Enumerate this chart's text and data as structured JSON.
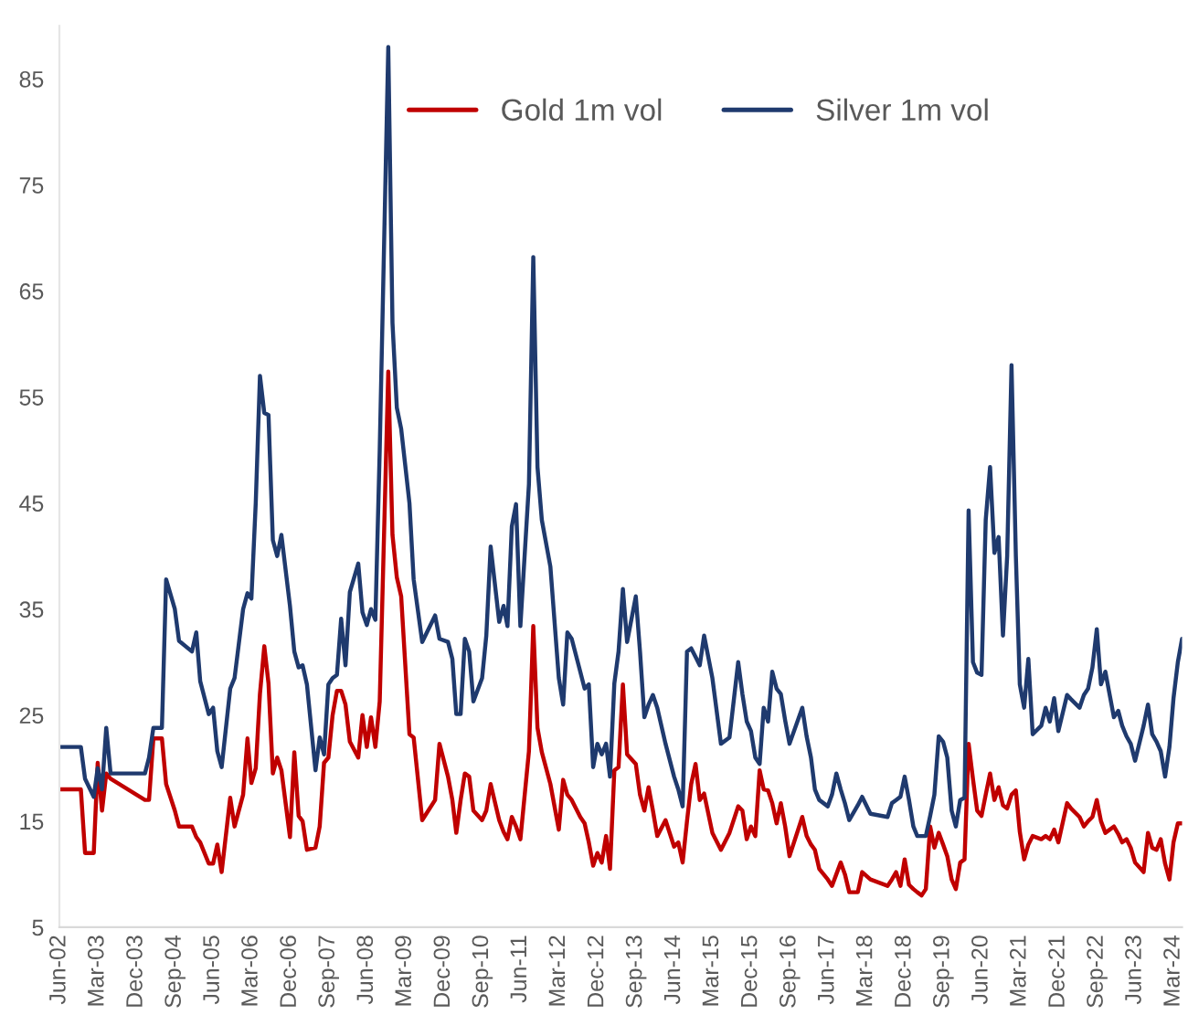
{
  "chart_data": {
    "type": "line",
    "x": [
      "2002-06",
      "2002-11",
      "2002-12",
      "2003-02",
      "2003-03",
      "2003-04",
      "2003-05",
      "2003-06",
      "2004-02",
      "2004-03",
      "2004-04",
      "2004-06",
      "2004-07",
      "2004-09",
      "2004-10",
      "2005-01",
      "2005-02",
      "2005-03",
      "2005-05",
      "2005-06",
      "2005-07",
      "2005-08",
      "2005-10",
      "2005-11",
      "2006-01",
      "2006-02",
      "2006-03",
      "2006-04",
      "2006-05",
      "2006-06",
      "2006-07",
      "2006-08",
      "2006-09",
      "2006-10",
      "2006-12",
      "2007-01",
      "2007-02",
      "2007-03",
      "2007-04",
      "2007-06",
      "2007-07",
      "2007-08",
      "2007-09",
      "2007-10",
      "2007-11",
      "2007-12",
      "2008-01",
      "2008-02",
      "2008-04",
      "2008-05",
      "2008-06",
      "2008-07",
      "2008-08",
      "2008-09",
      "2008-11",
      "2008-12",
      "2009-01",
      "2009-02",
      "2009-04",
      "2009-05",
      "2009-07",
      "2009-10",
      "2009-11",
      "2010-01",
      "2010-02",
      "2010-03",
      "2010-04",
      "2010-05",
      "2010-06",
      "2010-07",
      "2010-09",
      "2010-10",
      "2010-11",
      "2011-01",
      "2011-02",
      "2011-03",
      "2011-04",
      "2011-05",
      "2011-06",
      "2011-08",
      "2011-09",
      "2011-10",
      "2011-11",
      "2012-01",
      "2012-03",
      "2012-04",
      "2012-05",
      "2012-06",
      "2012-08",
      "2012-09",
      "2012-10",
      "2012-11",
      "2012-12",
      "2013-01",
      "2013-02",
      "2013-03",
      "2013-04",
      "2013-05",
      "2013-06",
      "2013-07",
      "2013-09",
      "2013-10",
      "2013-11",
      "2013-12",
      "2014-01",
      "2014-02",
      "2014-04",
      "2014-06",
      "2014-07",
      "2014-08",
      "2014-09",
      "2014-10",
      "2014-11",
      "2014-12",
      "2015-01",
      "2015-03",
      "2015-05",
      "2015-07",
      "2015-09",
      "2015-10",
      "2015-11",
      "2015-12",
      "2016-01",
      "2016-02",
      "2016-03",
      "2016-04",
      "2016-05",
      "2016-06",
      "2016-07",
      "2016-08",
      "2016-09",
      "2016-12",
      "2017-01",
      "2017-02",
      "2017-03",
      "2017-04",
      "2017-06",
      "2017-07",
      "2017-08",
      "2017-09",
      "2017-10",
      "2017-11",
      "2018-01",
      "2018-02",
      "2018-04",
      "2018-08",
      "2018-09",
      "2018-10",
      "2018-11",
      "2018-12",
      "2019-01",
      "2019-02",
      "2019-03",
      "2019-04",
      "2019-05",
      "2019-06",
      "2019-07",
      "2019-08",
      "2019-09",
      "2019-10",
      "2019-11",
      "2019-12",
      "2020-01",
      "2020-02",
      "2020-03",
      "2020-04",
      "2020-05",
      "2020-06",
      "2020-07",
      "2020-08",
      "2020-09",
      "2020-10",
      "2020-11",
      "2020-12",
      "2021-01",
      "2021-02",
      "2021-03",
      "2021-04",
      "2021-05",
      "2021-06",
      "2021-08",
      "2021-09",
      "2021-10",
      "2021-11",
      "2021-12",
      "2022-02",
      "2022-03",
      "2022-05",
      "2022-06",
      "2022-07",
      "2022-08",
      "2022-09",
      "2022-10",
      "2022-11",
      "2023-01",
      "2023-02",
      "2023-03",
      "2023-04",
      "2023-05",
      "2023-06",
      "2023-08",
      "2023-09",
      "2023-10",
      "2023-11",
      "2023-12",
      "2024-01",
      "2024-02",
      "2024-03",
      "2024-04",
      "2024-05"
    ],
    "series": [
      {
        "name": "Gold 1m vol",
        "color": "#c00000",
        "values": [
          18,
          18,
          12,
          12,
          20.5,
          16,
          19.5,
          19,
          17,
          17,
          22.8,
          22.8,
          18.5,
          16,
          14.5,
          14.5,
          13.5,
          13,
          11,
          11,
          12.8,
          10.2,
          17.2,
          14.5,
          17.5,
          22.8,
          18.6,
          20,
          27,
          31.5,
          28,
          19.5,
          21,
          19.8,
          13.5,
          21.5,
          15.5,
          15,
          12.3,
          12.5,
          14.5,
          20.5,
          21,
          25,
          27.3,
          27.3,
          26,
          22.5,
          21,
          25,
          22,
          24.8,
          22,
          26.3,
          57.4,
          42,
          38,
          36.2,
          23.2,
          22.9,
          15.1,
          17,
          22.3,
          19.2,
          17,
          13.9,
          17,
          19.5,
          19.2,
          16,
          15.1,
          16,
          18.5,
          15.1,
          14,
          13.3,
          15.4,
          14.5,
          13.3,
          21.6,
          33.4,
          23.8,
          21.5,
          18.5,
          14.2,
          18.9,
          17.5,
          17,
          15.4,
          14.8,
          13,
          10.8,
          12,
          11.1,
          13.6,
          10.5,
          19.8,
          20.1,
          27.9,
          21.3,
          20.4,
          17.5,
          16,
          18.2,
          16,
          13.6,
          15.1,
          12.6,
          13,
          11.1,
          15,
          18.5,
          20.4,
          17,
          17.6,
          13.9,
          12.3,
          13.9,
          16.4,
          16,
          13.3,
          14.5,
          13.6,
          19.8,
          18,
          17.9,
          16.7,
          14.8,
          16.7,
          14.5,
          11.7,
          15.4,
          13.6,
          12.8,
          12.3,
          10.5,
          9.5,
          8.9,
          10,
          11.1,
          10,
          8.3,
          8.3,
          10.2,
          9.5,
          8.9,
          9.5,
          10.2,
          8.9,
          11.4,
          9,
          8.6,
          8.3,
          8,
          8.6,
          14.5,
          12.5,
          13.9,
          12.8,
          11.7,
          9.5,
          8.6,
          11.1,
          11.4,
          22.3,
          19,
          16,
          15.5,
          17.5,
          19.5,
          17,
          18.2,
          16.5,
          16.2,
          17.5,
          17.9,
          14,
          11.4,
          12.8,
          13.6,
          13.3,
          13.6,
          13.3,
          14.2,
          13,
          16.7,
          16.2,
          15.4,
          14.5,
          15,
          15.4,
          17,
          15,
          13.9,
          14.5,
          13.8,
          13,
          13.3,
          12.5,
          11.1,
          10.2,
          13.9,
          12.5,
          12.3,
          13.3,
          11,
          9.5,
          13,
          14.8,
          14.8
        ]
      },
      {
        "name": "Silver 1m vol",
        "color": "#1f3a6e",
        "values": [
          22,
          22,
          19,
          17.3,
          20,
          18,
          23.8,
          19.5,
          19.5,
          21,
          23.8,
          23.8,
          37.8,
          35,
          32,
          31,
          32.8,
          28.2,
          25.1,
          25.7,
          21.6,
          20.1,
          27.5,
          28.5,
          35,
          36.5,
          36,
          45,
          57,
          53.5,
          53.3,
          41.5,
          40,
          42,
          35.3,
          31,
          29.5,
          29.7,
          27.9,
          19.8,
          22.9,
          21.3,
          27.9,
          28.5,
          28.8,
          34.1,
          29.7,
          36.6,
          39.3,
          34.7,
          33.5,
          35,
          34,
          50,
          88,
          62,
          54,
          52,
          45,
          37.8,
          31.9,
          34.4,
          32.2,
          31.9,
          30.3,
          25.1,
          25.1,
          32.2,
          31,
          26.3,
          28.5,
          32.5,
          40.9,
          33.8,
          35.3,
          33.4,
          42.8,
          44.9,
          33.4,
          46.8,
          68.2,
          48.4,
          43.4,
          39,
          28.5,
          26,
          32.8,
          32.2,
          29.1,
          27.5,
          27.9,
          20.1,
          22.3,
          21.3,
          22.3,
          19.2,
          28,
          31,
          36.9,
          31.9,
          36.2,
          31,
          24.8,
          26,
          26.9,
          25.7,
          22.3,
          19.2,
          18,
          16.4,
          31,
          31.3,
          30.5,
          29.7,
          32.5,
          28.5,
          22.3,
          22.9,
          30,
          27,
          24.4,
          23.5,
          21,
          20.4,
          25.7,
          24.4,
          29.1,
          27.5,
          27,
          24.5,
          22.3,
          25.7,
          23,
          21,
          18,
          17,
          16.4,
          17.5,
          19.5,
          18,
          16.7,
          15.1,
          16.5,
          17.3,
          15.7,
          15.4,
          16.7,
          17,
          17.3,
          19.2,
          17,
          14.5,
          13.6,
          13.6,
          13.6,
          15.5,
          17.5,
          23,
          22.5,
          21,
          16,
          14.5,
          17,
          17.2,
          44.3,
          30,
          29,
          28.8,
          43.4,
          48.4,
          40.3,
          41.8,
          32.5,
          40,
          58,
          40,
          27.9,
          25.7,
          30.3,
          23.2,
          24,
          25.7,
          24.4,
          26.6,
          23.5,
          26.9,
          26.5,
          25.7,
          26.9,
          27.5,
          29.5,
          33.1,
          27.9,
          29.1,
          24.8,
          25.4,
          24,
          23,
          22.3,
          20.7,
          24,
          26,
          23.2,
          22.5,
          21.6,
          19.2,
          22,
          26.6,
          30,
          32.2
        ]
      }
    ],
    "xlim": [
      "2002-06",
      "2024-05"
    ],
    "xticks": [
      {
        "value": "2002-06",
        "label": "Jun-02"
      },
      {
        "value": "2003-03",
        "label": "Mar-03"
      },
      {
        "value": "2003-12",
        "label": "Dec-03"
      },
      {
        "value": "2004-09",
        "label": "Sep-04"
      },
      {
        "value": "2005-06",
        "label": "Jun-05"
      },
      {
        "value": "2006-03",
        "label": "Mar-06"
      },
      {
        "value": "2006-12",
        "label": "Dec-06"
      },
      {
        "value": "2007-09",
        "label": "Sep-07"
      },
      {
        "value": "2008-06",
        "label": "Jun-08"
      },
      {
        "value": "2009-03",
        "label": "Mar-09"
      },
      {
        "value": "2009-12",
        "label": "Dec-09"
      },
      {
        "value": "2010-09",
        "label": "Sep-10"
      },
      {
        "value": "2011-06",
        "label": "Jun-11"
      },
      {
        "value": "2012-03",
        "label": "Mar-12"
      },
      {
        "value": "2012-12",
        "label": "Dec-12"
      },
      {
        "value": "2013-09",
        "label": "Sep-13"
      },
      {
        "value": "2014-06",
        "label": "Jun-14"
      },
      {
        "value": "2015-03",
        "label": "Mar-15"
      },
      {
        "value": "2015-12",
        "label": "Dec-15"
      },
      {
        "value": "2016-09",
        "label": "Sep-16"
      },
      {
        "value": "2017-06",
        "label": "Jun-17"
      },
      {
        "value": "2018-03",
        "label": "Mar-18"
      },
      {
        "value": "2018-12",
        "label": "Dec-18"
      },
      {
        "value": "2019-09",
        "label": "Sep-19"
      },
      {
        "value": "2020-06",
        "label": "Jun-20"
      },
      {
        "value": "2021-03",
        "label": "Mar-21"
      },
      {
        "value": "2021-12",
        "label": "Dec-21"
      },
      {
        "value": "2022-09",
        "label": "Sep-22"
      },
      {
        "value": "2023-06",
        "label": "Jun-23"
      },
      {
        "value": "2024-03",
        "label": "Mar-24"
      }
    ],
    "ylim": [
      5,
      90
    ],
    "yticks": [
      5,
      15,
      25,
      35,
      45,
      55,
      65,
      75,
      85
    ],
    "grid": false,
    "legend": "top"
  }
}
